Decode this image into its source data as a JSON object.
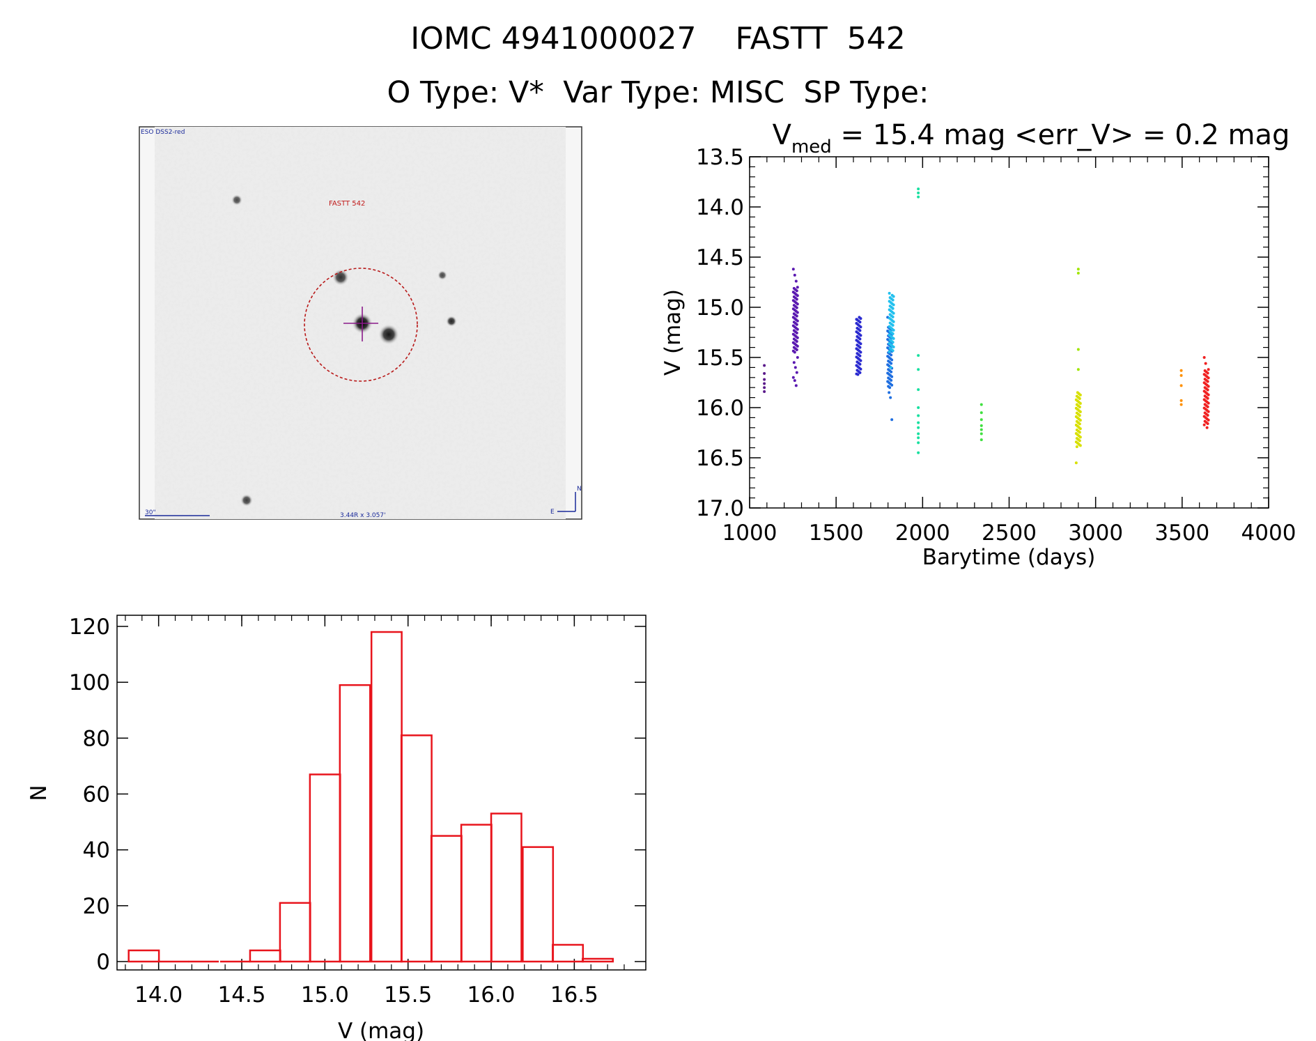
{
  "header": {
    "title": "IOMC 4941000027    FASTT  542",
    "subtitle": "O Type: V*  Var Type: MISC  SP Type:"
  },
  "finder": {
    "survey_label": "ESO DSS2-red",
    "target_label": "FASTT 542",
    "scale_label": "30\"",
    "fov_label": "3.44R x 3.057'",
    "compass_n": "N",
    "compass_e": "E"
  },
  "stats": {
    "vmed_symbol": "V",
    "vmed_sub": "med",
    "vmed_text": " = 15.4 mag <err_V> = 0.2 mag"
  },
  "colors": {
    "hist": "#e8141c",
    "axis": "#000000"
  },
  "chart_data": [
    {
      "type": "scatter",
      "xlabel": "Barytime (days)",
      "ylabel": "V (mag)",
      "xlim": [
        1000,
        4000
      ],
      "ylim": [
        17.0,
        13.5
      ],
      "inverted_y": true,
      "xticks": [
        "1000",
        "1500",
        "2000",
        "2500",
        "3000",
        "3500",
        "4000"
      ],
      "yticks": [
        "13.5",
        "14.0",
        "14.5",
        "15.0",
        "15.5",
        "16.0",
        "16.5",
        "17.0"
      ],
      "groups": [
        {
          "x": 1085,
          "color": "#5a1a8a",
          "y": [
            15.58,
            15.66,
            15.72,
            15.76,
            15.8,
            15.84
          ]
        },
        {
          "x": 1265,
          "color": "#5a19b0",
          "dense": [
            14.8,
            15.45
          ],
          "y": [
            14.62,
            14.68,
            14.74,
            15.5,
            15.55,
            15.6,
            15.65,
            15.7,
            15.73,
            15.78
          ]
        },
        {
          "x": 1630,
          "color": "#2a2ad0",
          "dense": [
            15.1,
            15.67
          ],
          "y": [
            15.12,
            15.67
          ]
        },
        {
          "x": 1810,
          "color": "#1e6ee0",
          "dense": [
            15.2,
            15.8
          ],
          "y": [
            15.1,
            15.85,
            15.9,
            16.12
          ]
        },
        {
          "x": 1820,
          "color": "#22c0ee",
          "dense": [
            14.88,
            15.45
          ],
          "y": [
            14.86,
            15.6
          ]
        },
        {
          "x": 1975,
          "color": "#18e0a0",
          "y": [
            13.82,
            13.86,
            13.9,
            15.48,
            15.62,
            15.82,
            16.0,
            16.08,
            16.15,
            16.2,
            16.26,
            16.3,
            16.35,
            16.45
          ]
        },
        {
          "x": 2340,
          "color": "#40e040",
          "y": [
            15.97,
            16.05,
            16.12,
            16.18,
            16.22,
            16.26,
            16.32
          ]
        },
        {
          "x": 2900,
          "color": "#a0e600",
          "y": [
            14.62,
            14.66,
            15.42,
            15.62
          ]
        },
        {
          "x": 2900,
          "color": "#d8e000",
          "dense": [
            15.85,
            16.4
          ],
          "y": [
            16.55
          ]
        },
        {
          "x": 3495,
          "color": "#ff9000",
          "y": [
            15.63,
            15.68,
            15.78,
            15.93,
            15.97
          ]
        },
        {
          "x": 3640,
          "color": "#f02020",
          "dense": [
            15.62,
            16.18
          ],
          "y": [
            15.5,
            15.56,
            16.2
          ]
        }
      ]
    },
    {
      "type": "bar",
      "xlabel": "V (mag)",
      "ylabel": "N",
      "xlim": [
        13.75,
        16.93
      ],
      "ylim": [
        0,
        120
      ],
      "xticks": [
        "14.0",
        "14.5",
        "15.0",
        "15.5",
        "16.0",
        "16.5"
      ],
      "yticks": [
        "0",
        "20",
        "40",
        "60",
        "80",
        "100",
        "120"
      ],
      "bin_width": 0.182,
      "bin_starts": [
        13.82,
        14.0,
        14.18,
        14.37,
        14.55,
        14.73,
        14.91,
        15.09,
        15.28,
        15.46,
        15.64,
        15.82,
        16.0,
        16.19,
        16.37,
        16.55
      ],
      "values": [
        4,
        0,
        0,
        0,
        4,
        21,
        67,
        99,
        118,
        81,
        45,
        49,
        53,
        41,
        6,
        1
      ]
    }
  ]
}
